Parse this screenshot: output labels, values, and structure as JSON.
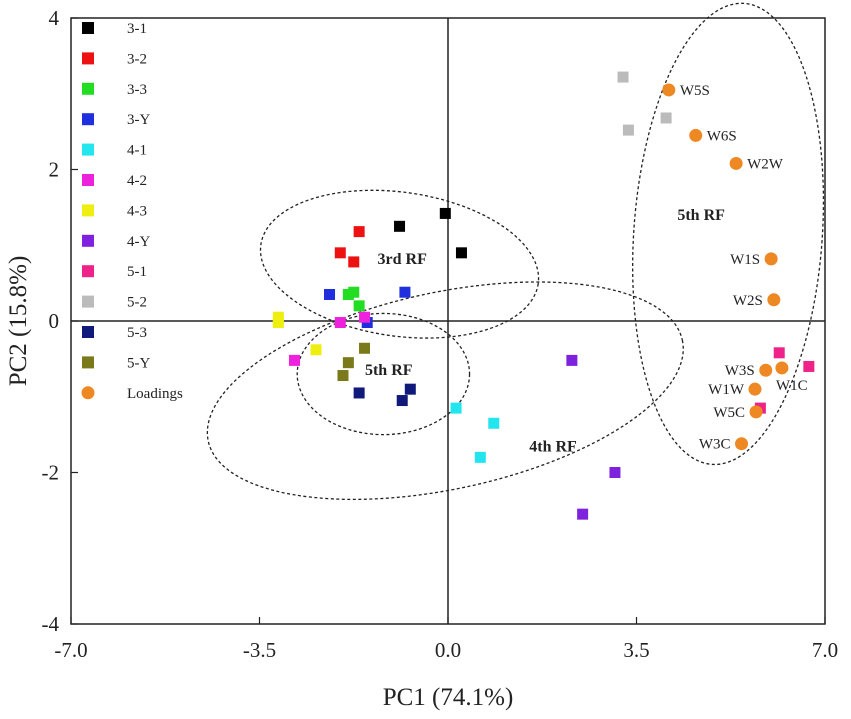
{
  "chart_data": {
    "type": "scatter",
    "title": "",
    "xlabel": "PC1 (74.1%)",
    "ylabel": "PC2 (15.8%)",
    "xlim": [
      -7.0,
      7.0
    ],
    "ylim": [
      -4,
      4
    ],
    "x_ticks": [
      -7.0,
      -3.5,
      0.0,
      3.5,
      7.0
    ],
    "x_tick_labels": [
      "-7.0",
      "-3.5",
      "0.0",
      "3.5",
      "7.0"
    ],
    "y_ticks": [
      -4,
      -2,
      0,
      2,
      4
    ],
    "y_tick_labels": [
      "-4",
      "-2",
      "0",
      "2",
      "4"
    ],
    "grid": false,
    "zero_lines": true,
    "legend_position": "left",
    "series": [
      {
        "name": "3-1",
        "color": "#000000",
        "marker": "square",
        "points": [
          [
            -0.9,
            1.25
          ],
          [
            -0.05,
            1.42
          ],
          [
            0.25,
            0.9
          ]
        ]
      },
      {
        "name": "3-2",
        "color": "#ee1111",
        "marker": "square",
        "points": [
          [
            -1.65,
            1.18
          ],
          [
            -2.0,
            0.9
          ],
          [
            -1.75,
            0.78
          ]
        ]
      },
      {
        "name": "3-3",
        "color": "#22dd22",
        "marker": "square",
        "points": [
          [
            -1.85,
            0.35
          ],
          [
            -1.75,
            0.38
          ],
          [
            -1.65,
            0.2
          ]
        ]
      },
      {
        "name": "3-Y",
        "color": "#1f2fdd",
        "marker": "square",
        "points": [
          [
            -2.2,
            0.35
          ],
          [
            -0.8,
            0.38
          ],
          [
            -1.5,
            -0.02
          ]
        ]
      },
      {
        "name": "4-1",
        "color": "#22e5ee",
        "marker": "square",
        "points": [
          [
            0.15,
            -1.15
          ],
          [
            0.85,
            -1.35
          ],
          [
            0.6,
            -1.8
          ]
        ]
      },
      {
        "name": "4-2",
        "color": "#ee22dd",
        "marker": "square",
        "points": [
          [
            -2.85,
            -0.52
          ],
          [
            -2.0,
            -0.02
          ],
          [
            -1.55,
            0.05
          ]
        ]
      },
      {
        "name": "4-3",
        "color": "#eeee11",
        "marker": "square",
        "points": [
          [
            -3.15,
            0.05
          ],
          [
            -3.15,
            -0.02
          ],
          [
            -2.45,
            -0.38
          ]
        ]
      },
      {
        "name": "4-Y",
        "color": "#7f22dd",
        "marker": "square",
        "points": [
          [
            2.3,
            -0.52
          ],
          [
            3.1,
            -2.0
          ],
          [
            2.5,
            -2.55
          ]
        ]
      },
      {
        "name": "5-1",
        "color": "#ee2288",
        "marker": "square",
        "points": [
          [
            6.15,
            -0.42
          ],
          [
            6.7,
            -0.6
          ],
          [
            5.8,
            -1.15
          ]
        ]
      },
      {
        "name": "5-2",
        "color": "#bbbbbb",
        "marker": "square",
        "points": [
          [
            3.25,
            3.22
          ],
          [
            3.35,
            2.52
          ],
          [
            4.05,
            2.68
          ]
        ]
      },
      {
        "name": "5-3",
        "color": "#101a7a",
        "marker": "square",
        "points": [
          [
            -1.65,
            -0.95
          ],
          [
            -0.85,
            -1.05
          ],
          [
            -0.7,
            -0.9
          ]
        ]
      },
      {
        "name": "5-Y",
        "color": "#7a7a1a",
        "marker": "square",
        "points": [
          [
            -1.85,
            -0.55
          ],
          [
            -1.95,
            -0.72
          ],
          [
            -1.55,
            -0.36
          ]
        ]
      },
      {
        "name": "Loadings",
        "color": "#ee8822",
        "marker": "circle",
        "points": [
          {
            "x": 4.1,
            "y": 3.05,
            "label": "W5S"
          },
          {
            "x": 4.6,
            "y": 2.45,
            "label": "W6S"
          },
          {
            "x": 5.35,
            "y": 2.08,
            "label": "W2W"
          },
          {
            "x": 6.0,
            "y": 0.82,
            "label": "W1S"
          },
          {
            "x": 6.05,
            "y": 0.28,
            "label": "W2S"
          },
          {
            "x": 5.9,
            "y": -0.65,
            "label": "W3S"
          },
          {
            "x": 6.2,
            "y": -0.62,
            "label": "W1C"
          },
          {
            "x": 5.7,
            "y": -0.9,
            "label": "W1W"
          },
          {
            "x": 5.72,
            "y": -1.2,
            "label": "W5C"
          },
          {
            "x": 5.45,
            "y": -1.62,
            "label": "W3C"
          }
        ]
      }
    ],
    "annotations": [
      {
        "text": "3rd RF",
        "x": -0.85,
        "y": 0.82
      },
      {
        "text": "5th RF",
        "x": -1.1,
        "y": -0.65
      },
      {
        "text": "4th RF",
        "x": 1.95,
        "y": -1.66
      },
      {
        "text": "5th RF",
        "x": 4.7,
        "y": 1.4
      }
    ],
    "ellipses": [
      {
        "name": "3rd RF",
        "cx": -0.9,
        "cy": 0.75,
        "rx": 2.6,
        "ry": 0.95,
        "angle_deg": -8
      },
      {
        "name": "5th RF (inner)",
        "cx": -1.2,
        "cy": -0.7,
        "rx": 1.6,
        "ry": 0.8,
        "angle_deg": 0
      },
      {
        "name": "4th RF",
        "cx": -0.05,
        "cy": -0.92,
        "rx": 4.5,
        "ry": 1.3,
        "angle_deg": 12
      },
      {
        "name": "5th RF (outer)",
        "cx": 5.2,
        "cy": 1.15,
        "rx": 1.75,
        "ry": 3.05,
        "angle_deg": -4
      }
    ]
  }
}
